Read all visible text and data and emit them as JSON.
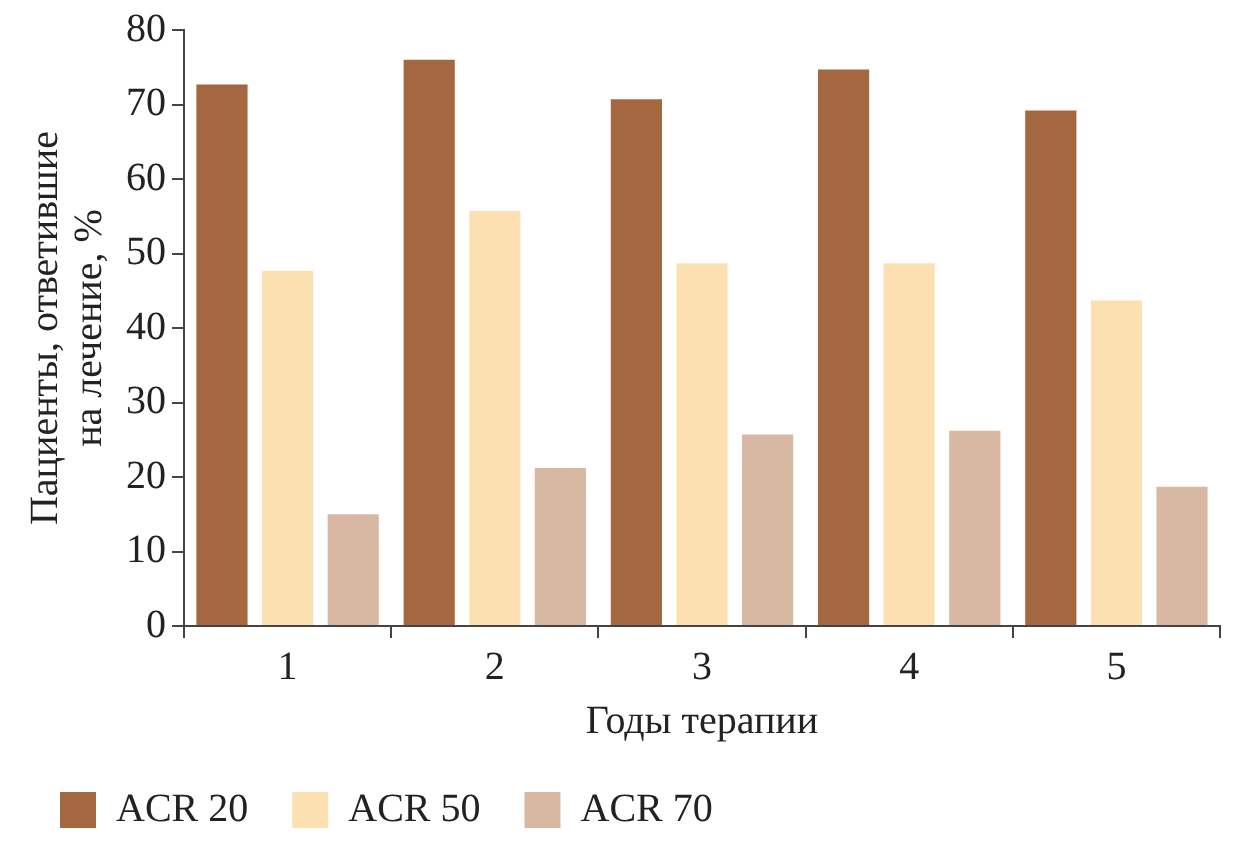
{
  "chart_data": {
    "type": "bar",
    "xlabel": "Годы терапии",
    "ylabel": "Пациенты, ответившие\nна лечение, %",
    "categories": [
      "1",
      "2",
      "3",
      "4",
      "5"
    ],
    "series": [
      {
        "name": "ACR 20",
        "color": "#a5673f",
        "values": [
          72.7,
          76,
          70.7,
          74.7,
          69.2
        ]
      },
      {
        "name": "ACR 50",
        "color": "#fde0b2",
        "values": [
          47.7,
          55.7,
          48.7,
          48.7,
          43.7
        ]
      },
      {
        "name": "ACR 70",
        "color": "#d9b8a3",
        "values": [
          15,
          21.2,
          25.7,
          26.2,
          18.7
        ]
      }
    ],
    "ylim": [
      0,
      80
    ],
    "yticks": [
      0,
      10,
      20,
      30,
      40,
      50,
      60,
      70,
      80
    ],
    "grid": false,
    "legend": "bottom"
  }
}
